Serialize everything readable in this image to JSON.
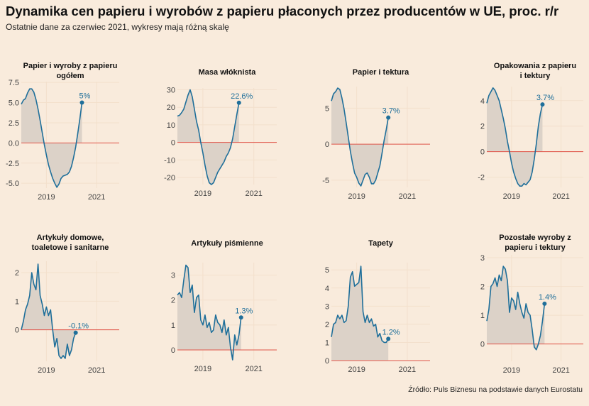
{
  "title": "Dynamika cen papieru i wyrobów z papieru płaconych przez producentów w UE, proc. r/r",
  "subtitle": "Ostatnie dane za czerwiec 2021, wykresy mają różną skalę",
  "source": "Źródło: Puls Biznesu na podstawie danych Eurostatu",
  "colors": {
    "background": "#f9ebdc",
    "line": "#1f6f9a",
    "area": "#dcd2c8",
    "zero_line": "#e0554a",
    "grid": "#f3e0cc"
  },
  "chart_data": [
    {
      "type": "area",
      "title": "Papier i wyroby z papieru\nogółem",
      "xlim": [
        2018.0,
        2021.9
      ],
      "ylim": [
        -5.6,
        7.6
      ],
      "yticks": [
        7.5,
        5.0,
        2.5,
        0.0,
        -2.5,
        -5.0
      ],
      "ytick_labels": [
        "7.5",
        "5.0",
        "2.5",
        "0.0",
        "-2.5",
        "-5.0"
      ],
      "xticks": [
        2019,
        2021
      ],
      "label": "5%",
      "x_start": 2018.0,
      "x_step": 0.08333,
      "values": [
        4.8,
        5.3,
        5.5,
        6.2,
        6.7,
        6.7,
        6.3,
        5.4,
        4.2,
        2.8,
        1.3,
        -0.2,
        -1.5,
        -2.7,
        -3.6,
        -4.4,
        -5.0,
        -5.5,
        -5.1,
        -4.4,
        -4.1,
        -4.0,
        -3.9,
        -3.6,
        -2.9,
        -1.8,
        -0.5,
        1.2,
        3.0,
        5.0
      ]
    },
    {
      "type": "area",
      "title": "Masa włóknista",
      "xlim": [
        2018.0,
        2021.9
      ],
      "ylim": [
        -24,
        31
      ],
      "yticks": [
        30,
        20,
        10,
        0,
        -10,
        -20
      ],
      "ytick_labels": [
        "30",
        "20",
        "10",
        "0",
        "-10",
        "-20"
      ],
      "xticks": [
        2019,
        2021
      ],
      "label": "22.6%",
      "x_start": 2018.0,
      "x_step": 0.08333,
      "values": [
        15,
        15.5,
        17,
        19,
        23,
        27,
        30,
        26,
        19,
        12,
        7,
        0,
        -6,
        -13,
        -19,
        -23,
        -24,
        -23,
        -20,
        -17,
        -15,
        -13,
        -11,
        -8,
        -6,
        -3,
        2,
        9,
        16,
        22.6
      ]
    },
    {
      "type": "area",
      "title": "Papier i tektura",
      "xlim": [
        2018.0,
        2021.9
      ],
      "ylim": [
        -6.0,
        8.0
      ],
      "yticks": [
        5,
        0,
        -5
      ],
      "ytick_labels": [
        "5",
        "0",
        "-5"
      ],
      "xticks": [
        2019,
        2021
      ],
      "label": "3.7%",
      "x_start": 2018.0,
      "x_step": 0.08333,
      "values": [
        6.0,
        7.0,
        7.3,
        7.8,
        7.6,
        6.4,
        4.9,
        3.0,
        1.0,
        -1.0,
        -2.6,
        -4.0,
        -4.6,
        -5.4,
        -5.8,
        -5.0,
        -4.2,
        -4.0,
        -4.6,
        -5.5,
        -5.5,
        -5.0,
        -4.0,
        -3.0,
        -1.3,
        0.5,
        2.0,
        3.7
      ]
    },
    {
      "type": "area",
      "title": "Opakowania z papieru\ni tektury",
      "xlim": [
        2018.0,
        2021.9
      ],
      "ylim": [
        -2.8,
        5.1
      ],
      "yticks": [
        4,
        2,
        0,
        -2
      ],
      "ytick_labels": [
        "4",
        "2",
        "0",
        "-2"
      ],
      "xticks": [
        2019,
        2021
      ],
      "label": "3.7%",
      "x_start": 2018.0,
      "x_step": 0.08333,
      "values": [
        3.8,
        4.4,
        4.7,
        5.0,
        4.8,
        4.4,
        4.0,
        3.3,
        2.6,
        1.8,
        0.8,
        0,
        -0.9,
        -1.6,
        -2.1,
        -2.5,
        -2.7,
        -2.7,
        -2.5,
        -2.6,
        -2.4,
        -2.2,
        -1.6,
        -0.6,
        0.6,
        2.0,
        3.0,
        3.7
      ]
    },
    {
      "type": "line",
      "title": "Artykuły domowe,\ntoaletowe i sanitarne",
      "xlim": [
        2018.0,
        2021.9
      ],
      "ylim": [
        -1.1,
        2.4
      ],
      "yticks": [
        2,
        1,
        0
      ],
      "ytick_labels": [
        "2",
        "1",
        "0"
      ],
      "xticks": [
        2019,
        2021
      ],
      "label": "-0.1%",
      "x_start": 2018.0,
      "x_step": 0.08333,
      "values": [
        0,
        0.3,
        0.7,
        0.9,
        1.2,
        2.0,
        1.6,
        1.4,
        2.3,
        1.2,
        0.9,
        0.5,
        0.8,
        0.5,
        0.7,
        0,
        -0.6,
        -0.3,
        -0.9,
        -1.0,
        -0.9,
        -1.0,
        -0.5,
        -0.9,
        -0.7,
        -0.3,
        -0.1
      ]
    },
    {
      "type": "line",
      "title": "Artykuły piśmienne",
      "xlim": [
        2018.0,
        2021.9
      ],
      "ylim": [
        -0.4,
        3.5
      ],
      "yticks": [
        3,
        2,
        1,
        0
      ],
      "ytick_labels": [
        "3",
        "2",
        "1",
        "0"
      ],
      "xticks": [
        2019,
        2021
      ],
      "label": "1.3%",
      "x_start": 2018.0,
      "x_step": 0.08333,
      "values": [
        2.2,
        2.3,
        2.1,
        2.8,
        3.4,
        3.3,
        2.3,
        2.6,
        1.5,
        2.1,
        2.2,
        1.2,
        1.0,
        1.4,
        0.9,
        1.1,
        0.7,
        0.8,
        1.4,
        1.1,
        1.0,
        0.7,
        1.2,
        0.6,
        0.9,
        0.1,
        -0.4,
        0.6,
        0.2,
        0.6,
        1.3
      ]
    },
    {
      "type": "line",
      "title": "Tapety",
      "xlim": [
        2018.0,
        2021.9
      ],
      "ylim": [
        0,
        5.4
      ],
      "yticks": [
        5,
        4,
        3,
        2,
        1,
        0
      ],
      "ytick_labels": [
        "5",
        "4",
        "3",
        "2",
        "1",
        "0"
      ],
      "xticks": [
        2019,
        2021
      ],
      "label": "1.2%",
      "x_start": 2018.0,
      "x_step": 0.08333,
      "values": [
        1.3,
        2.0,
        2.1,
        2.5,
        2.3,
        2.5,
        2.1,
        2.2,
        3.0,
        4.6,
        4.9,
        4.1,
        4.2,
        4.3,
        5.2,
        2.7,
        2.1,
        2.5,
        2.1,
        2.3,
        1.9,
        2.0,
        1.3,
        1.5,
        1.1,
        1.0,
        1.0,
        1.2
      ]
    },
    {
      "type": "line",
      "title": "Pozostałe wyroby z\npapieru i tektury",
      "xlim": [
        2018.0,
        2021.9
      ],
      "ylim": [
        -0.6,
        3.1
      ],
      "yticks": [
        3,
        2,
        1,
        0
      ],
      "ytick_labels": [
        "3",
        "2",
        "1",
        "0"
      ],
      "xticks": [
        2019,
        2021
      ],
      "label": "1.4%",
      "x_start": 2018.0,
      "x_step": 0.08333,
      "values": [
        0.8,
        1.2,
        2.0,
        2.1,
        2.3,
        2.0,
        2.4,
        2.2,
        2.7,
        2.6,
        2.2,
        1.1,
        1.6,
        1.5,
        1.2,
        1.8,
        1.4,
        1.1,
        0.9,
        1.4,
        1.1,
        1.0,
        0.5,
        -0.1,
        -0.2,
        0.0,
        0.3,
        0.8,
        1.4
      ]
    }
  ]
}
